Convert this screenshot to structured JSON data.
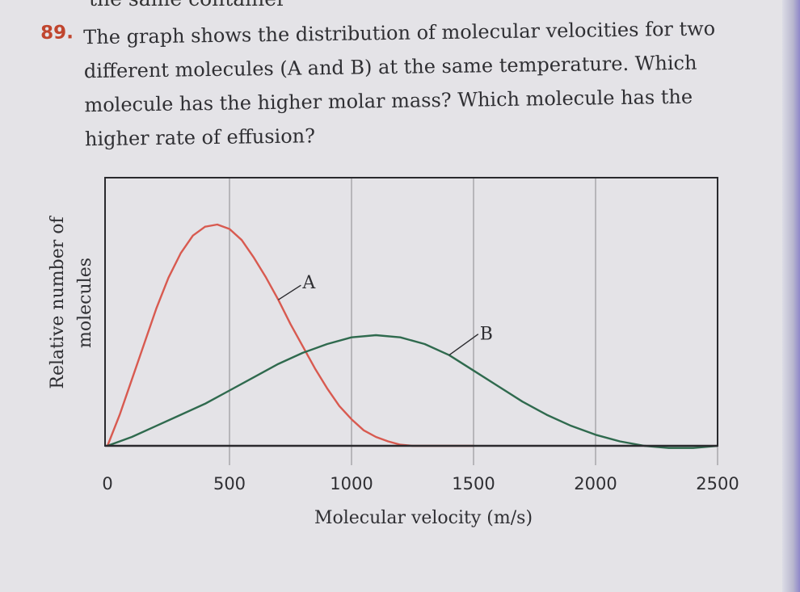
{
  "question": {
    "number": "89.",
    "text": "The graph shows the distribution of molecular velocities for two different molecules (A and B) at the same temperature. Which molecule has the higher molar mass? Which molecule has the higher rate of effusion?"
  },
  "partial_text": "the same container",
  "colors": {
    "series_a": "#d85a50",
    "series_b": "#2f6a4e",
    "frame": "#2a2a2e"
  },
  "chart_data": {
    "type": "line",
    "title": "",
    "xlabel": "Molecular velocity (m/s)",
    "ylabel": "Relative number of molecules",
    "xlim": [
      0,
      2500
    ],
    "ylim": [
      0,
      1
    ],
    "xticks": [
      "0",
      "500",
      "1000",
      "1500",
      "2000",
      "2500"
    ],
    "grid": "vertical",
    "series": [
      {
        "name": "A",
        "color": "#d85a50",
        "points": [
          [
            0,
            0
          ],
          [
            50,
            0.14
          ],
          [
            100,
            0.3
          ],
          [
            150,
            0.46
          ],
          [
            200,
            0.62
          ],
          [
            250,
            0.76
          ],
          [
            300,
            0.87
          ],
          [
            350,
            0.95
          ],
          [
            400,
            0.99
          ],
          [
            450,
            1.0
          ],
          [
            500,
            0.98
          ],
          [
            550,
            0.93
          ],
          [
            600,
            0.85
          ],
          [
            650,
            0.76
          ],
          [
            700,
            0.66
          ],
          [
            750,
            0.55
          ],
          [
            800,
            0.45
          ],
          [
            850,
            0.35
          ],
          [
            900,
            0.26
          ],
          [
            950,
            0.18
          ],
          [
            1000,
            0.12
          ],
          [
            1050,
            0.07
          ],
          [
            1100,
            0.04
          ],
          [
            1150,
            0.02
          ],
          [
            1200,
            0.005
          ],
          [
            1250,
            0
          ],
          [
            1300,
            0
          ],
          [
            1350,
            0
          ],
          [
            1400,
            0
          ],
          [
            1450,
            0
          ],
          [
            1500,
            0
          ]
        ]
      },
      {
        "name": "B",
        "color": "#2f6a4e",
        "points": [
          [
            0,
            0
          ],
          [
            100,
            0.04
          ],
          [
            200,
            0.09
          ],
          [
            300,
            0.14
          ],
          [
            400,
            0.19
          ],
          [
            500,
            0.25
          ],
          [
            600,
            0.31
          ],
          [
            700,
            0.37
          ],
          [
            800,
            0.42
          ],
          [
            900,
            0.46
          ],
          [
            1000,
            0.49
          ],
          [
            1100,
            0.5
          ],
          [
            1200,
            0.49
          ],
          [
            1300,
            0.46
          ],
          [
            1400,
            0.41
          ],
          [
            1500,
            0.34
          ],
          [
            1600,
            0.27
          ],
          [
            1700,
            0.2
          ],
          [
            1800,
            0.14
          ],
          [
            1900,
            0.09
          ],
          [
            2000,
            0.05
          ],
          [
            2100,
            0.02
          ],
          [
            2200,
            0
          ],
          [
            2300,
            -0.01
          ],
          [
            2400,
            -0.01
          ],
          [
            2500,
            0
          ]
        ]
      }
    ],
    "annotations": [
      "A",
      "B"
    ]
  }
}
